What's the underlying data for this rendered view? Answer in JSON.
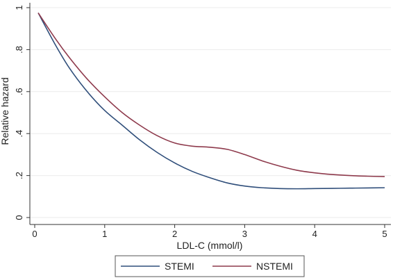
{
  "chart_data": {
    "type": "line",
    "title": "",
    "xlabel": "LDL-C (mmol/l)",
    "ylabel": "Relative hazard",
    "xlim": [
      0,
      5
    ],
    "ylim": [
      0,
      1
    ],
    "grid": true,
    "legend_position": "bottom",
    "x_ticks": [
      {
        "value": 0,
        "label": "0"
      },
      {
        "value": 1,
        "label": "1"
      },
      {
        "value": 2,
        "label": "2"
      },
      {
        "value": 3,
        "label": "3"
      },
      {
        "value": 4,
        "label": "4"
      },
      {
        "value": 5,
        "label": "5"
      }
    ],
    "y_ticks": [
      {
        "value": 0,
        "label": "0"
      },
      {
        "value": 0.2,
        "label": ".2"
      },
      {
        "value": 0.4,
        "label": ".4"
      },
      {
        "value": 0.6,
        "label": ".6"
      },
      {
        "value": 0.8,
        "label": ".8"
      },
      {
        "value": 1,
        "label": "1"
      }
    ],
    "series": [
      {
        "name": "STEMI",
        "color": "#2f4e7a",
        "x": [
          0.05,
          0.3,
          0.5,
          0.75,
          1.0,
          1.25,
          1.5,
          1.75,
          2.0,
          2.25,
          2.5,
          2.75,
          3.0,
          3.25,
          3.5,
          3.75,
          4.0,
          4.25,
          4.5,
          4.75,
          5.0
        ],
        "y": [
          0.975,
          0.82,
          0.71,
          0.6,
          0.51,
          0.44,
          0.37,
          0.31,
          0.26,
          0.22,
          0.19,
          0.165,
          0.15,
          0.142,
          0.138,
          0.137,
          0.138,
          0.139,
          0.14,
          0.141,
          0.142
        ]
      },
      {
        "name": "NSTEMI",
        "color": "#8e3a4c",
        "x": [
          0.05,
          0.3,
          0.5,
          0.75,
          1.0,
          1.25,
          1.5,
          1.75,
          2.0,
          2.25,
          2.5,
          2.75,
          3.0,
          3.25,
          3.5,
          3.75,
          4.0,
          4.25,
          4.5,
          4.75,
          5.0
        ],
        "y": [
          0.975,
          0.85,
          0.76,
          0.66,
          0.575,
          0.5,
          0.44,
          0.39,
          0.355,
          0.34,
          0.335,
          0.325,
          0.3,
          0.27,
          0.245,
          0.225,
          0.213,
          0.205,
          0.2,
          0.197,
          0.195
        ]
      }
    ]
  }
}
